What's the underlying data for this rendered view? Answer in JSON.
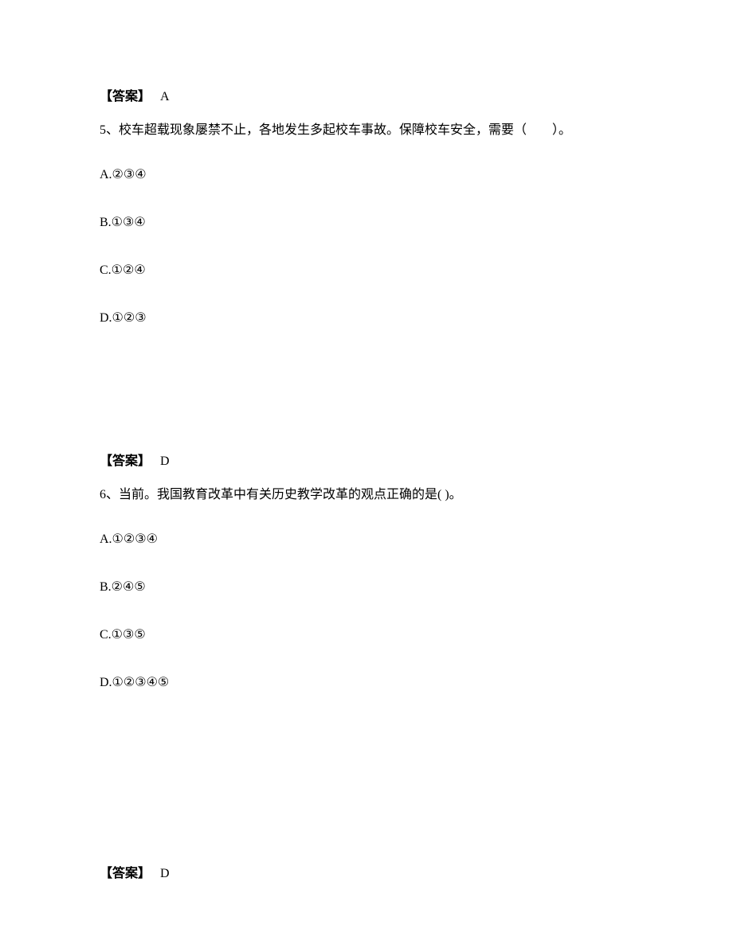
{
  "answer4": {
    "label": "【答案】",
    "value": "A"
  },
  "question5": {
    "text": "5、校车超载现象屡禁不止，各地发生多起校车事故。保障校车安全，需要（　　）。",
    "options": {
      "a": "A.②③④",
      "b": "B.①③④",
      "c": "C.①②④",
      "d": "D.①②③"
    }
  },
  "answer5": {
    "label": "【答案】",
    "value": "D"
  },
  "question6": {
    "text": "6、当前。我国教育改革中有关历史教学改革的观点正确的是( )。",
    "options": {
      "a": "A.①②③④",
      "b": "B.②④⑤",
      "c": "C.①③⑤",
      "d": "D.①②③④⑤"
    }
  },
  "answer6": {
    "label": "【答案】",
    "value": "D"
  }
}
